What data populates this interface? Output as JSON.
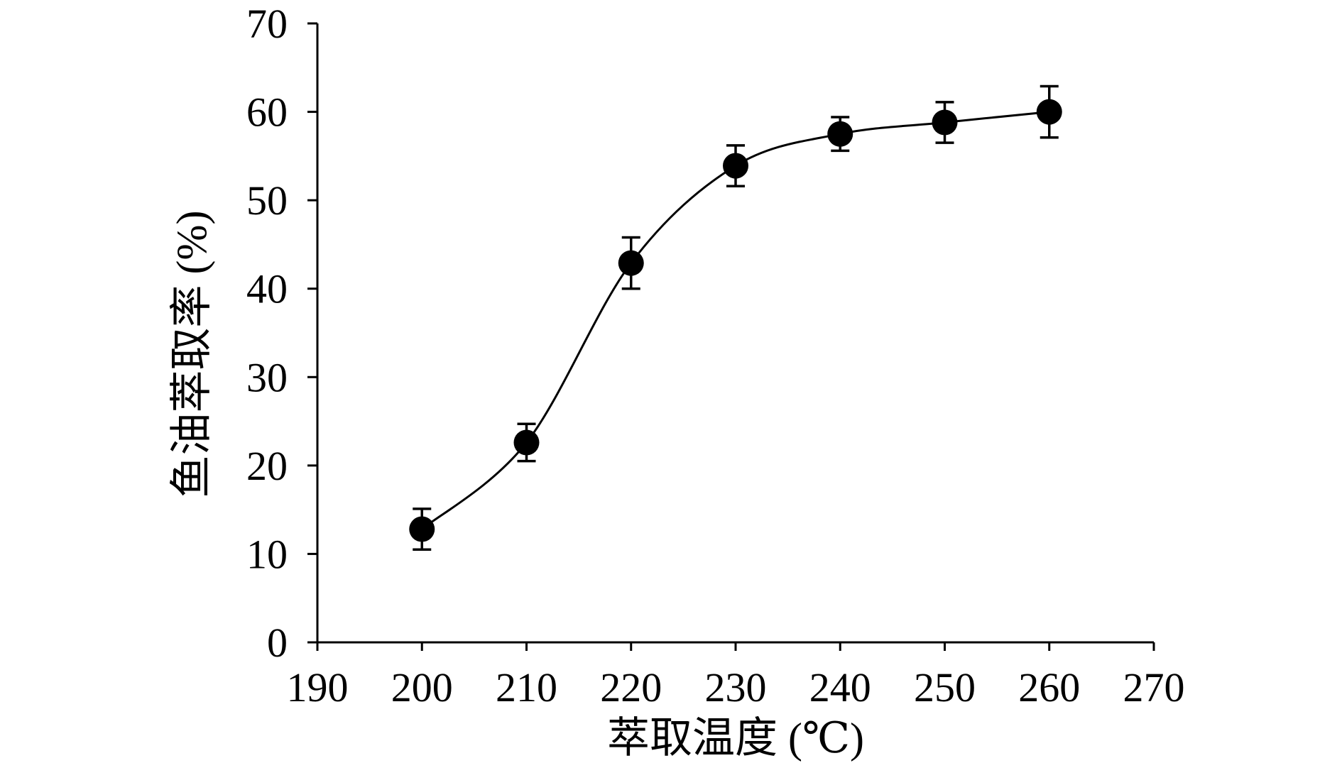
{
  "chart_data": {
    "type": "scatter",
    "xlabel": "萃取温度 (℃)",
    "ylabel": "鱼油萃取率 (%)",
    "xlim": [
      190,
      270
    ],
    "ylim": [
      0,
      70
    ],
    "x_ticks": [
      "190",
      "200",
      "210",
      "220",
      "230",
      "240",
      "250",
      "260",
      "270"
    ],
    "y_ticks": [
      "0",
      "10",
      "20",
      "30",
      "40",
      "50",
      "60",
      "70"
    ],
    "grid": false,
    "series": [
      {
        "x": [
          200,
          210,
          220,
          230,
          240,
          250,
          260
        ],
        "y": [
          12.8,
          22.6,
          42.9,
          53.9,
          57.5,
          58.8,
          60.0
        ],
        "error": [
          2.3,
          2.1,
          2.9,
          2.3,
          1.9,
          2.3,
          2.9
        ],
        "color": "#000000",
        "marker": "circle",
        "fit_line": "smooth"
      }
    ]
  }
}
